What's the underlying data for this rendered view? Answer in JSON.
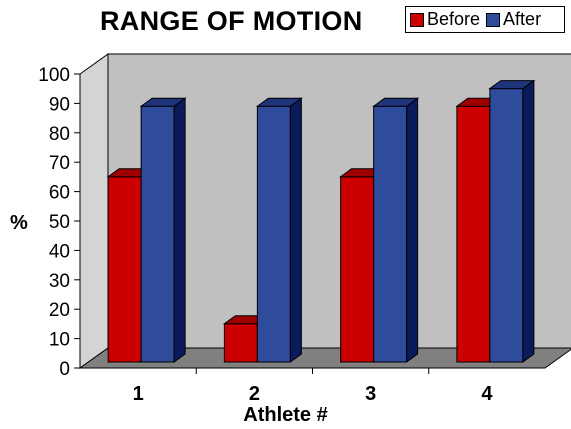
{
  "chart_data": {
    "type": "bar",
    "title": "RANGE OF MOTION",
    "xlabel": "Athlete #",
    "ylabel": "%",
    "categories": [
      "1",
      "2",
      "3",
      "4"
    ],
    "series": [
      {
        "name": "Before",
        "values": [
          63,
          13,
          63,
          87
        ],
        "color": "#cc0000"
      },
      {
        "name": "After",
        "values": [
          87,
          87,
          87,
          93
        ],
        "color": "#2e4b9c"
      }
    ],
    "ylim": [
      0,
      100
    ],
    "yticks": [
      0,
      10,
      20,
      30,
      40,
      50,
      60,
      70,
      80,
      90,
      100
    ],
    "grid": false,
    "legend": "top-right",
    "background": "#c0c0c0",
    "floor_color": "#808080"
  }
}
